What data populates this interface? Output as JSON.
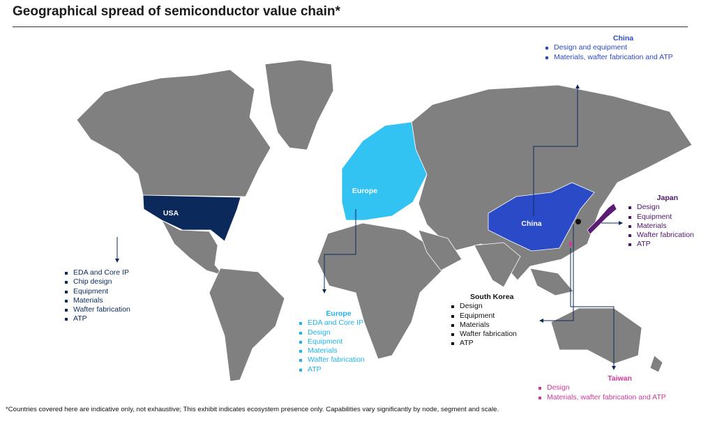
{
  "title": "Geographical spread of semiconductor value chain*",
  "map_labels": [
    "USA",
    "Europe",
    "China"
  ],
  "callouts": [
    {
      "items": [
        "EDA and Core IP",
        "Chip design",
        "Equipment",
        "Materials",
        "Wafter fabrication",
        "ATP"
      ]
    },
    {
      "heading": "Europe",
      "items": [
        "EDA and Core IP",
        "Design",
        "Equipment",
        "Materials",
        "Wafter fabrication",
        "ATP"
      ]
    },
    {
      "heading": "China",
      "items": [
        "Design and equipment",
        "Materials, wafter fabrication and ATP"
      ]
    },
    {
      "heading": "Japan",
      "items": [
        "Design",
        "Equipment",
        "Materials",
        "Wafter fabrication",
        "ATP"
      ]
    },
    {
      "heading": "South Korea",
      "items": [
        "Design",
        "Equipment",
        "Materials",
        "Wafter fabrication",
        "ATP"
      ]
    },
    {
      "heading": "Taiwan",
      "items": [
        "Design",
        "Materials, wafter fabrication and ATP"
      ]
    }
  ],
  "footnote": "*Countries covered here are indicative only, not exhaustive; This exhibit indicates ecosystem presence only. Capabilities vary significantly by node, segment and scale."
}
